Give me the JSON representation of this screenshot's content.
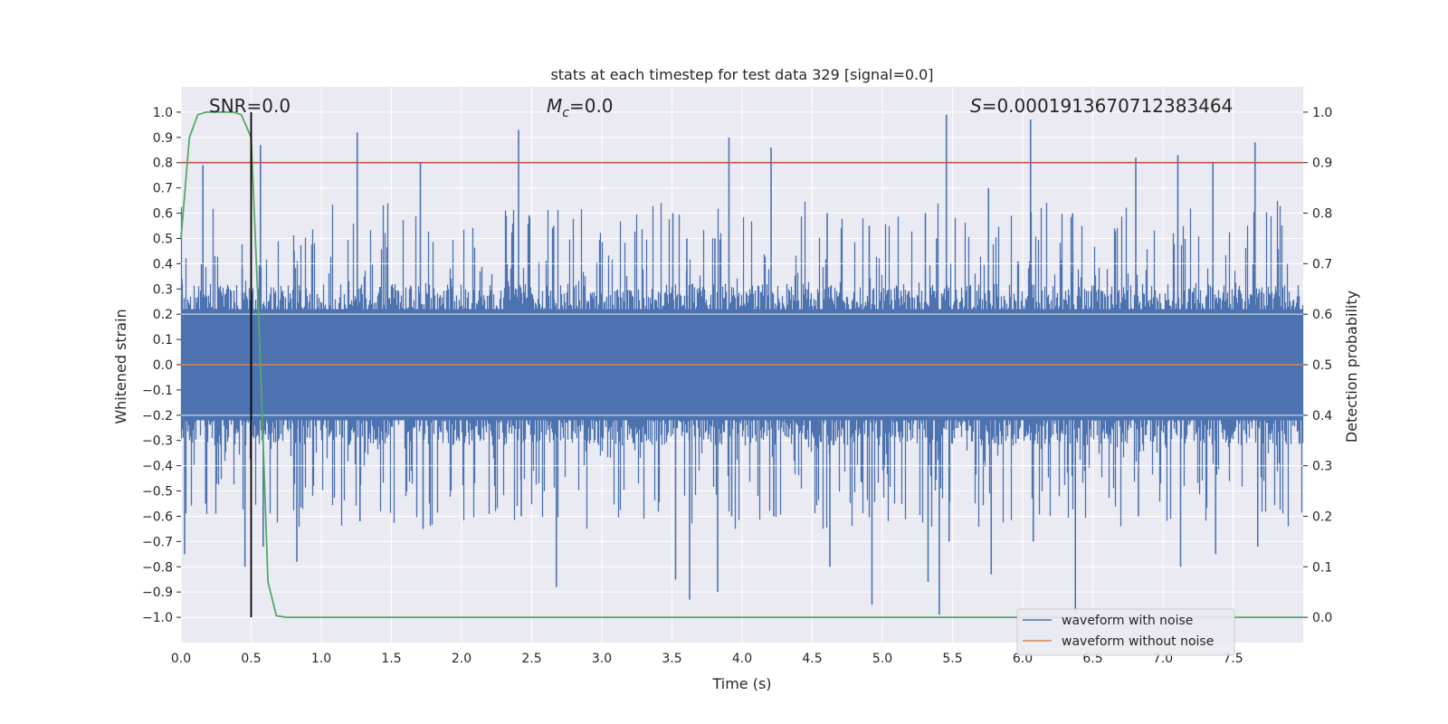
{
  "chart_data": {
    "type": "line",
    "title": "stats at each timestep for test data 329 [signal=0.0]",
    "xlabel": "Time (s)",
    "ylabel": "Whitened strain",
    "y2label": "Detection probability",
    "xlim": [
      0.0,
      8.0
    ],
    "ylim": [
      -1.1,
      1.1
    ],
    "y2lim": [
      -0.05,
      1.05
    ],
    "xticks": [
      "0.0",
      "0.5",
      "1.0",
      "1.5",
      "2.0",
      "2.5",
      "3.0",
      "3.5",
      "4.0",
      "4.5",
      "5.0",
      "5.5",
      "6.0",
      "6.5",
      "7.0",
      "7.5"
    ],
    "yticks": [
      "1.0",
      "0.9",
      "0.8",
      "0.7",
      "0.6",
      "0.5",
      "0.4",
      "0.3",
      "0.2",
      "0.1",
      "0.0",
      "−0.1",
      "−0.2",
      "−0.3",
      "−0.4",
      "−0.5",
      "−0.6",
      "−0.7",
      "−0.8",
      "−0.9",
      "−1.0"
    ],
    "y2ticks": [
      "1.0",
      "0.9",
      "0.8",
      "0.7",
      "0.6",
      "0.5",
      "0.4",
      "0.3",
      "0.2",
      "0.1",
      "0.0"
    ],
    "annotations": {
      "snr": "SNR=0.0",
      "mc_symbol": "M",
      "mc_sub": "c",
      "mc_value": "=0.0",
      "s_symbol": "S",
      "s_value": "=0.0001913670712383464"
    },
    "threshold_y2": 0.9,
    "marker_x": 0.5,
    "series": [
      {
        "name": "waveform with noise",
        "color": "#4c72b0",
        "description": "dense noise strain, envelope approx +/-0.35 with spikes to about +/-0.95",
        "peaks": [
          {
            "x": 0.0,
            "hi": 0.34,
            "lo": -0.75
          },
          {
            "x": 0.15,
            "hi": 0.79,
            "lo": -0.55
          },
          {
            "x": 0.43,
            "hi": 0.38,
            "lo": -0.8
          },
          {
            "x": 0.56,
            "hi": 0.87,
            "lo": -0.72
          },
          {
            "x": 0.8,
            "hi": 0.45,
            "lo": -0.78
          },
          {
            "x": 1.25,
            "hi": 0.92,
            "lo": -0.62
          },
          {
            "x": 1.7,
            "hi": 0.8,
            "lo": -0.65
          },
          {
            "x": 2.4,
            "hi": 0.93,
            "lo": -0.6
          },
          {
            "x": 2.65,
            "hi": 0.55,
            "lo": -0.88
          },
          {
            "x": 3.5,
            "hi": 0.6,
            "lo": -0.85
          },
          {
            "x": 3.6,
            "hi": 0.5,
            "lo": -0.93
          },
          {
            "x": 3.9,
            "hi": 0.9,
            "lo": -0.6
          },
          {
            "x": 3.8,
            "hi": 0.5,
            "lo": -0.9
          },
          {
            "x": 4.2,
            "hi": 0.86,
            "lo": -0.6
          },
          {
            "x": 4.6,
            "hi": 0.6,
            "lo": -0.8
          },
          {
            "x": 4.9,
            "hi": 0.55,
            "lo": -0.95
          },
          {
            "x": 5.3,
            "hi": 0.6,
            "lo": -0.86
          },
          {
            "x": 5.38,
            "hi": 0.5,
            "lo": -0.99
          },
          {
            "x": 5.45,
            "hi": 0.99,
            "lo": -0.7
          },
          {
            "x": 5.75,
            "hi": 0.7,
            "lo": -0.83
          },
          {
            "x": 6.05,
            "hi": 0.97,
            "lo": -0.7
          },
          {
            "x": 6.35,
            "hi": 0.6,
            "lo": -0.98
          },
          {
            "x": 6.8,
            "hi": 0.82,
            "lo": -0.6
          },
          {
            "x": 7.1,
            "hi": 0.83,
            "lo": -0.8
          },
          {
            "x": 7.35,
            "hi": 0.8,
            "lo": -0.75
          },
          {
            "x": 7.65,
            "hi": 0.88,
            "lo": -0.72
          }
        ]
      },
      {
        "name": "waveform without noise",
        "color": "#dd8452",
        "x": [
          0.0,
          8.0
        ],
        "y": [
          0.0,
          0.0
        ]
      },
      {
        "name": "detection probability",
        "color": "#55a868",
        "axis": "right",
        "x": [
          0.0,
          0.06,
          0.12,
          0.18,
          0.25,
          0.31,
          0.37,
          0.43,
          0.5,
          0.56,
          0.62,
          0.68,
          0.75,
          8.0
        ],
        "y": [
          0.75,
          0.95,
          0.995,
          1.0,
          1.0,
          1.0,
          1.0,
          0.995,
          0.95,
          0.55,
          0.07,
          0.003,
          0.0,
          0.0
        ]
      }
    ],
    "legend": {
      "position": "lower-right",
      "entries": [
        "waveform with noise",
        "waveform without noise"
      ]
    },
    "colors": {
      "threshold": "#c44e52",
      "marker": "#000000",
      "background": "#eaeaf2",
      "grid": "#ffffff"
    }
  }
}
